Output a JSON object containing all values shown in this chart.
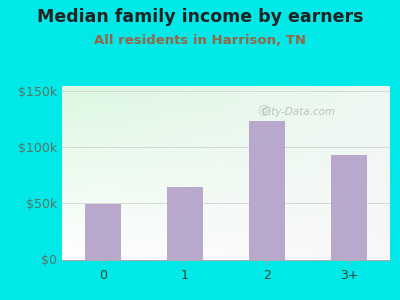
{
  "title": "Median family income by earners",
  "subtitle": "All residents in Harrison, TN",
  "categories": [
    "0",
    "1",
    "2",
    "3+"
  ],
  "values": [
    49000,
    65000,
    123000,
    93000
  ],
  "bar_color": "#b8a8cc",
  "title_fontsize": 12.5,
  "subtitle_fontsize": 9.5,
  "title_color": "#222222",
  "subtitle_color": "#996644",
  "background_outer": "#00e8e8",
  "yticks": [
    0,
    50000,
    100000,
    150000
  ],
  "ytick_labels": [
    "$0",
    "$50k",
    "$100k",
    "$150k"
  ],
  "ylim": [
    0,
    155000
  ],
  "watermark": "City-Data.com",
  "tick_color": "#557766"
}
